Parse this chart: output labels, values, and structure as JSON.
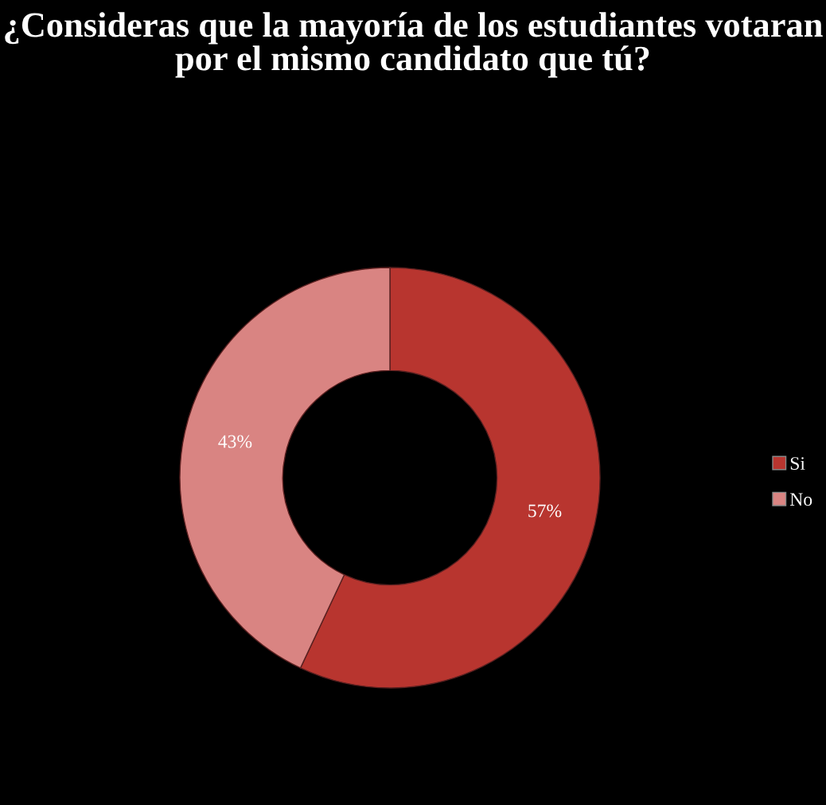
{
  "chart_data": {
    "type": "donut",
    "title": "¿Consideras que la mayoría de los estudiantes votaran por el mismo candidato que tú?",
    "categories": [
      "Si",
      "No"
    ],
    "values": [
      57,
      43
    ],
    "colors": [
      "#b8352f",
      "#d98482"
    ],
    "value_labels": [
      "57%",
      "43%"
    ],
    "legend": "right"
  }
}
